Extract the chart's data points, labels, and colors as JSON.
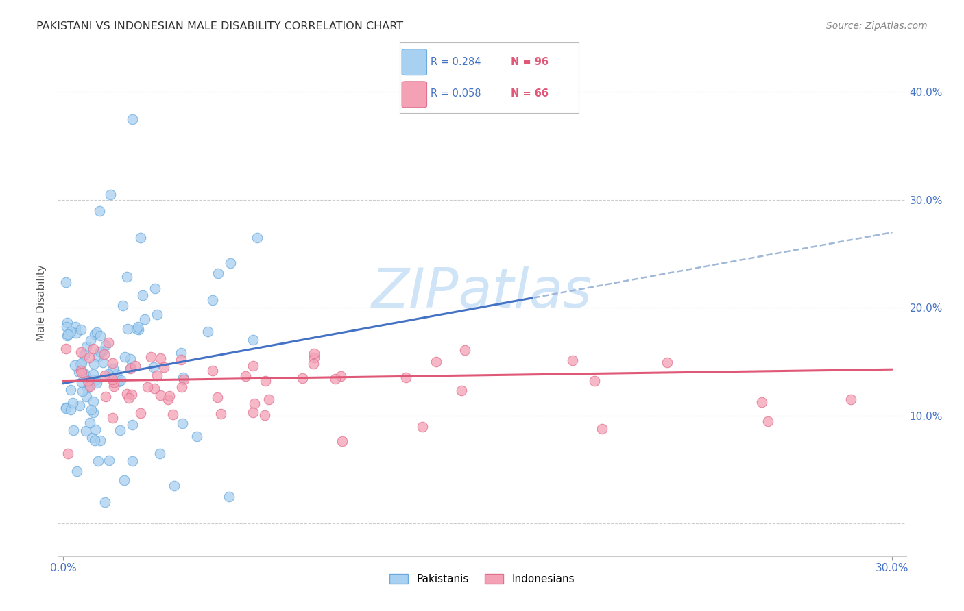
{
  "title": "PAKISTANI VS INDONESIAN MALE DISABILITY CORRELATION CHART",
  "source": "Source: ZipAtlas.com",
  "ylabel": "Male Disability",
  "watermark": "ZIPatlas",
  "xlim": [
    -0.002,
    0.305
  ],
  "ylim": [
    -0.03,
    0.44
  ],
  "ytick_positions": [
    0.0,
    0.1,
    0.2,
    0.3,
    0.4
  ],
  "ytick_labels_right": [
    "",
    "10.0%",
    "20.0%",
    "30.0%",
    "40.0%"
  ],
  "pakistanis_color": "#A8D0F0",
  "indonesians_color": "#F4A0B5",
  "pakistanis_edge": "#6AAADE",
  "indonesians_edge": "#E07090",
  "trend_blue": "#4472C4",
  "trend_pink": "#E05878",
  "trend_dashed_blue": "#A0B8D8",
  "legend_r_color": "#4472C4",
  "legend_n_color": "#E05878",
  "title_color": "#333333",
  "source_color": "#888888",
  "tick_color": "#4472C4",
  "grid_color": "#CCCCCC",
  "watermark_color": "#D0E4F8"
}
